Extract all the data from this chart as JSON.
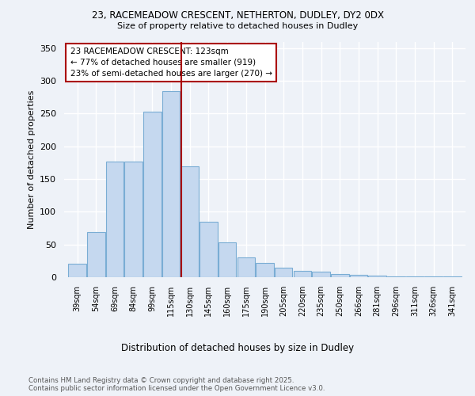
{
  "title_line1": "23, RACEMEADOW CRESCENT, NETHERTON, DUDLEY, DY2 0DX",
  "title_line2": "Size of property relative to detached houses in Dudley",
  "xlabel": "Distribution of detached houses by size in Dudley",
  "ylabel": "Number of detached properties",
  "categories": [
    "39sqm",
    "54sqm",
    "69sqm",
    "84sqm",
    "99sqm",
    "115sqm",
    "130sqm",
    "145sqm",
    "160sqm",
    "175sqm",
    "190sqm",
    "205sqm",
    "220sqm",
    "235sqm",
    "250sqm",
    "266sqm",
    "281sqm",
    "296sqm",
    "311sqm",
    "326sqm",
    "341sqm"
  ],
  "values": [
    20,
    69,
    177,
    177,
    253,
    284,
    170,
    85,
    53,
    30,
    22,
    15,
    10,
    8,
    5,
    4,
    2,
    1,
    1,
    1,
    1
  ],
  "bar_color": "#c5d8ef",
  "bar_edge_color": "#7aadd4",
  "bar_edge_width": 0.8,
  "annotation_line_color": "#aa0000",
  "annotation_box_text": "23 RACEMEADOW CRESCENT: 123sqm\n← 77% of detached houses are smaller (919)\n23% of semi-detached houses are larger (270) →",
  "ylim": [
    0,
    360
  ],
  "yticks": [
    0,
    50,
    100,
    150,
    200,
    250,
    300,
    350
  ],
  "background_color": "#eef2f8",
  "footer_text": "Contains HM Land Registry data © Crown copyright and database right 2025.\nContains public sector information licensed under the Open Government Licence v3.0."
}
